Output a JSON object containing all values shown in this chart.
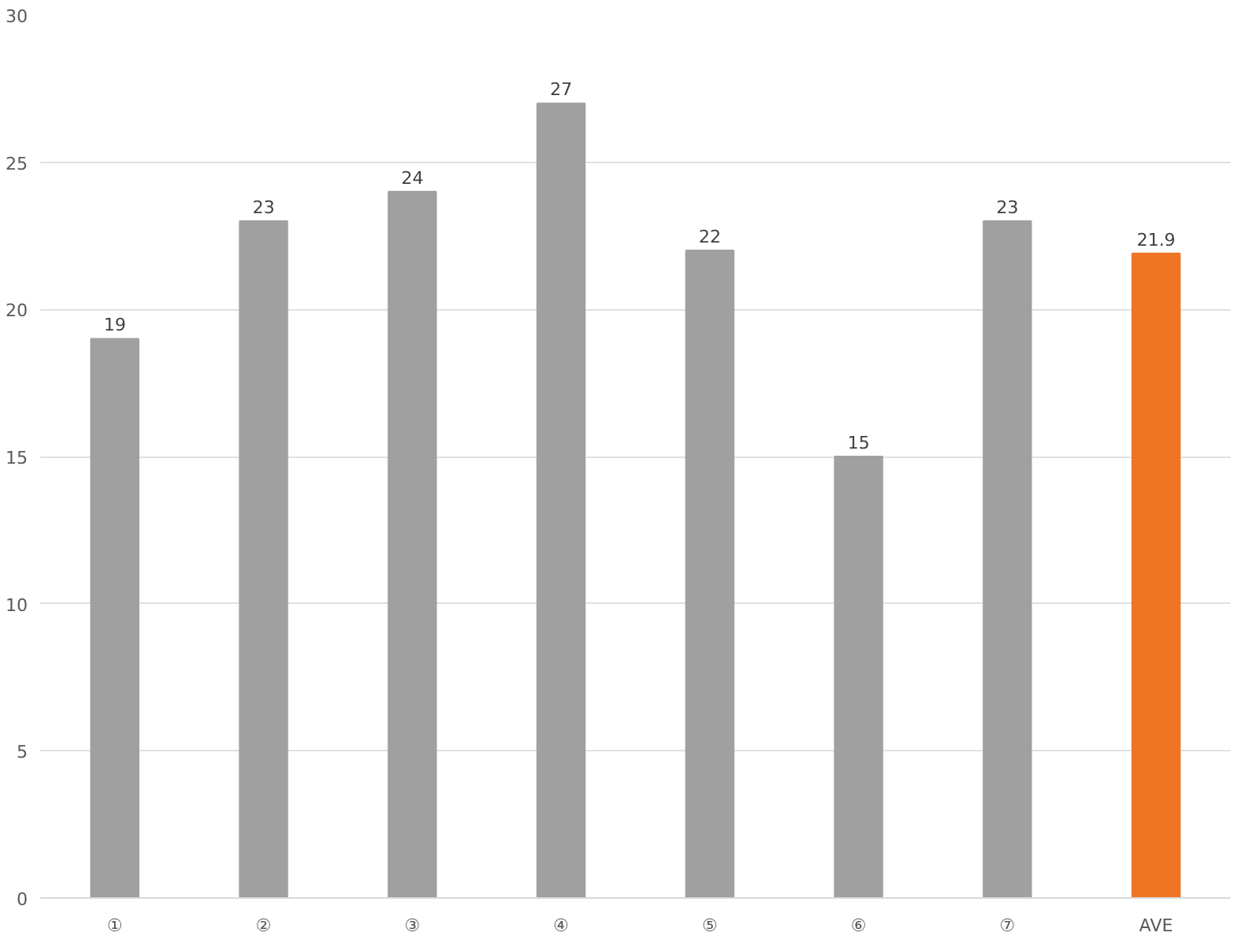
{
  "chart_data": {
    "type": "bar",
    "categories": [
      "①",
      "②",
      "③",
      "④",
      "⑤",
      "⑥",
      "⑦",
      "AVE"
    ],
    "values": [
      19,
      23,
      24,
      27,
      22,
      15,
      23,
      21.9
    ],
    "colors": [
      "#a0a0a0",
      "#a0a0a0",
      "#a0a0a0",
      "#a0a0a0",
      "#a0a0a0",
      "#a0a0a0",
      "#a0a0a0",
      "#ee7623"
    ],
    "ylim": [
      0,
      30
    ],
    "yticks": [
      0,
      5,
      10,
      15,
      20,
      25,
      30
    ],
    "grid": "y",
    "data_labels": true
  }
}
